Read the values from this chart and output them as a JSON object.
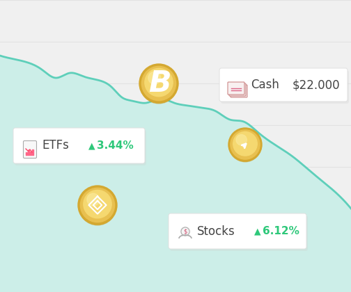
{
  "background_color": "#f0f0f0",
  "chart_line_color": "#5ecfba",
  "chart_fill_color": "#cceee8",
  "horizontal_line_color": "#e2e2e2",
  "card_bg": "#ffffff",
  "card_border": "#e0e0e0",
  "green_text": "#2ec87a",
  "dark_text": "#444444",
  "gray_text": "#888888",
  "etfs_label": "ETFs",
  "etfs_value": "3.44%",
  "cash_label": "Cash",
  "cash_value": "$22.000",
  "stocks_label": "Stocks",
  "stocks_value": "6.12%",
  "coin_gold_outer": "#c8920a",
  "coin_gold_mid": "#d4a830",
  "coin_gold_inner": "#e8c050",
  "coin_gold_light": "#f5d870",
  "coin_gold_highlight": "#fae898",
  "num_horizontal_lines": 6,
  "chart_x": [
    0,
    20,
    40,
    60,
    80,
    100,
    120,
    140,
    160,
    175,
    190,
    210,
    230,
    250,
    270,
    290,
    310,
    330,
    350,
    370,
    390,
    420,
    450,
    480,
    504
  ],
  "chart_y": [
    340,
    335,
    330,
    320,
    308,
    315,
    310,
    305,
    295,
    280,
    275,
    272,
    278,
    272,
    268,
    265,
    260,
    248,
    245,
    230,
    215,
    195,
    170,
    145,
    120
  ]
}
